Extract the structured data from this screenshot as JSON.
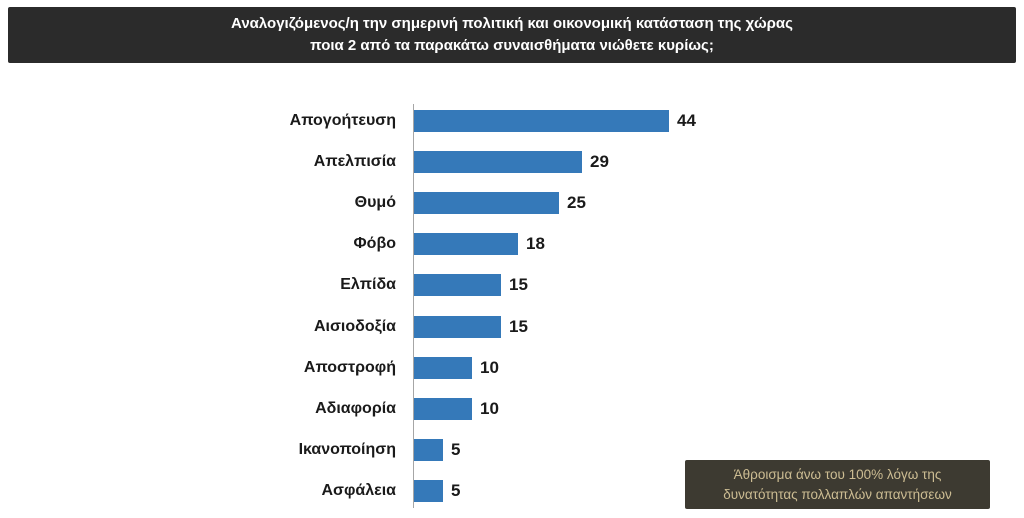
{
  "header": {
    "title_line1": "Αναλογιζόμενος/η την σημερινή πολιτική και οικονομική κατάσταση της χώρας",
    "title_line2": "ποια 2 από τα παρακάτω συναισθήματα νιώθετε κυρίως;"
  },
  "note": {
    "line1": "Άθροισμα άνω του 100% λόγω της",
    "line2": "δυνατότητας πολλαπλών απαντήσεων"
  },
  "colors": {
    "bar": "#3579b9",
    "header_bg": "#2b2b2b",
    "header_text": "#ffffff",
    "note_bg": "#3d3a31",
    "note_text": "#cdbd93",
    "axis": "#a6a6a6"
  },
  "chart_data": {
    "type": "bar",
    "orientation": "horizontal",
    "title": "Αναλογιζόμενος/η την σημερινή πολιτική και οικονομική κατάσταση της χώρας ποια 2 από τα παρακάτω συναισθήματα νιώθετε κυρίως;",
    "categories": [
      "Απογοήτευση",
      "Απελπισία",
      "Θυμό",
      "Φόβο",
      "Ελπίδα",
      "Αισιοδοξία",
      "Αποστροφή",
      "Αδιαφορία",
      "Ικανοποίηση",
      "Ασφάλεια"
    ],
    "values": [
      44,
      29,
      25,
      18,
      15,
      15,
      10,
      10,
      5,
      5
    ],
    "xlabel": "",
    "ylabel": "",
    "xlim": [
      0,
      50
    ],
    "value_labels": true,
    "grid": false,
    "legend": false,
    "annotation": "Άθροισμα άνω του 100% λόγω της δυνατότητας πολλαπλών απαντήσεων"
  }
}
